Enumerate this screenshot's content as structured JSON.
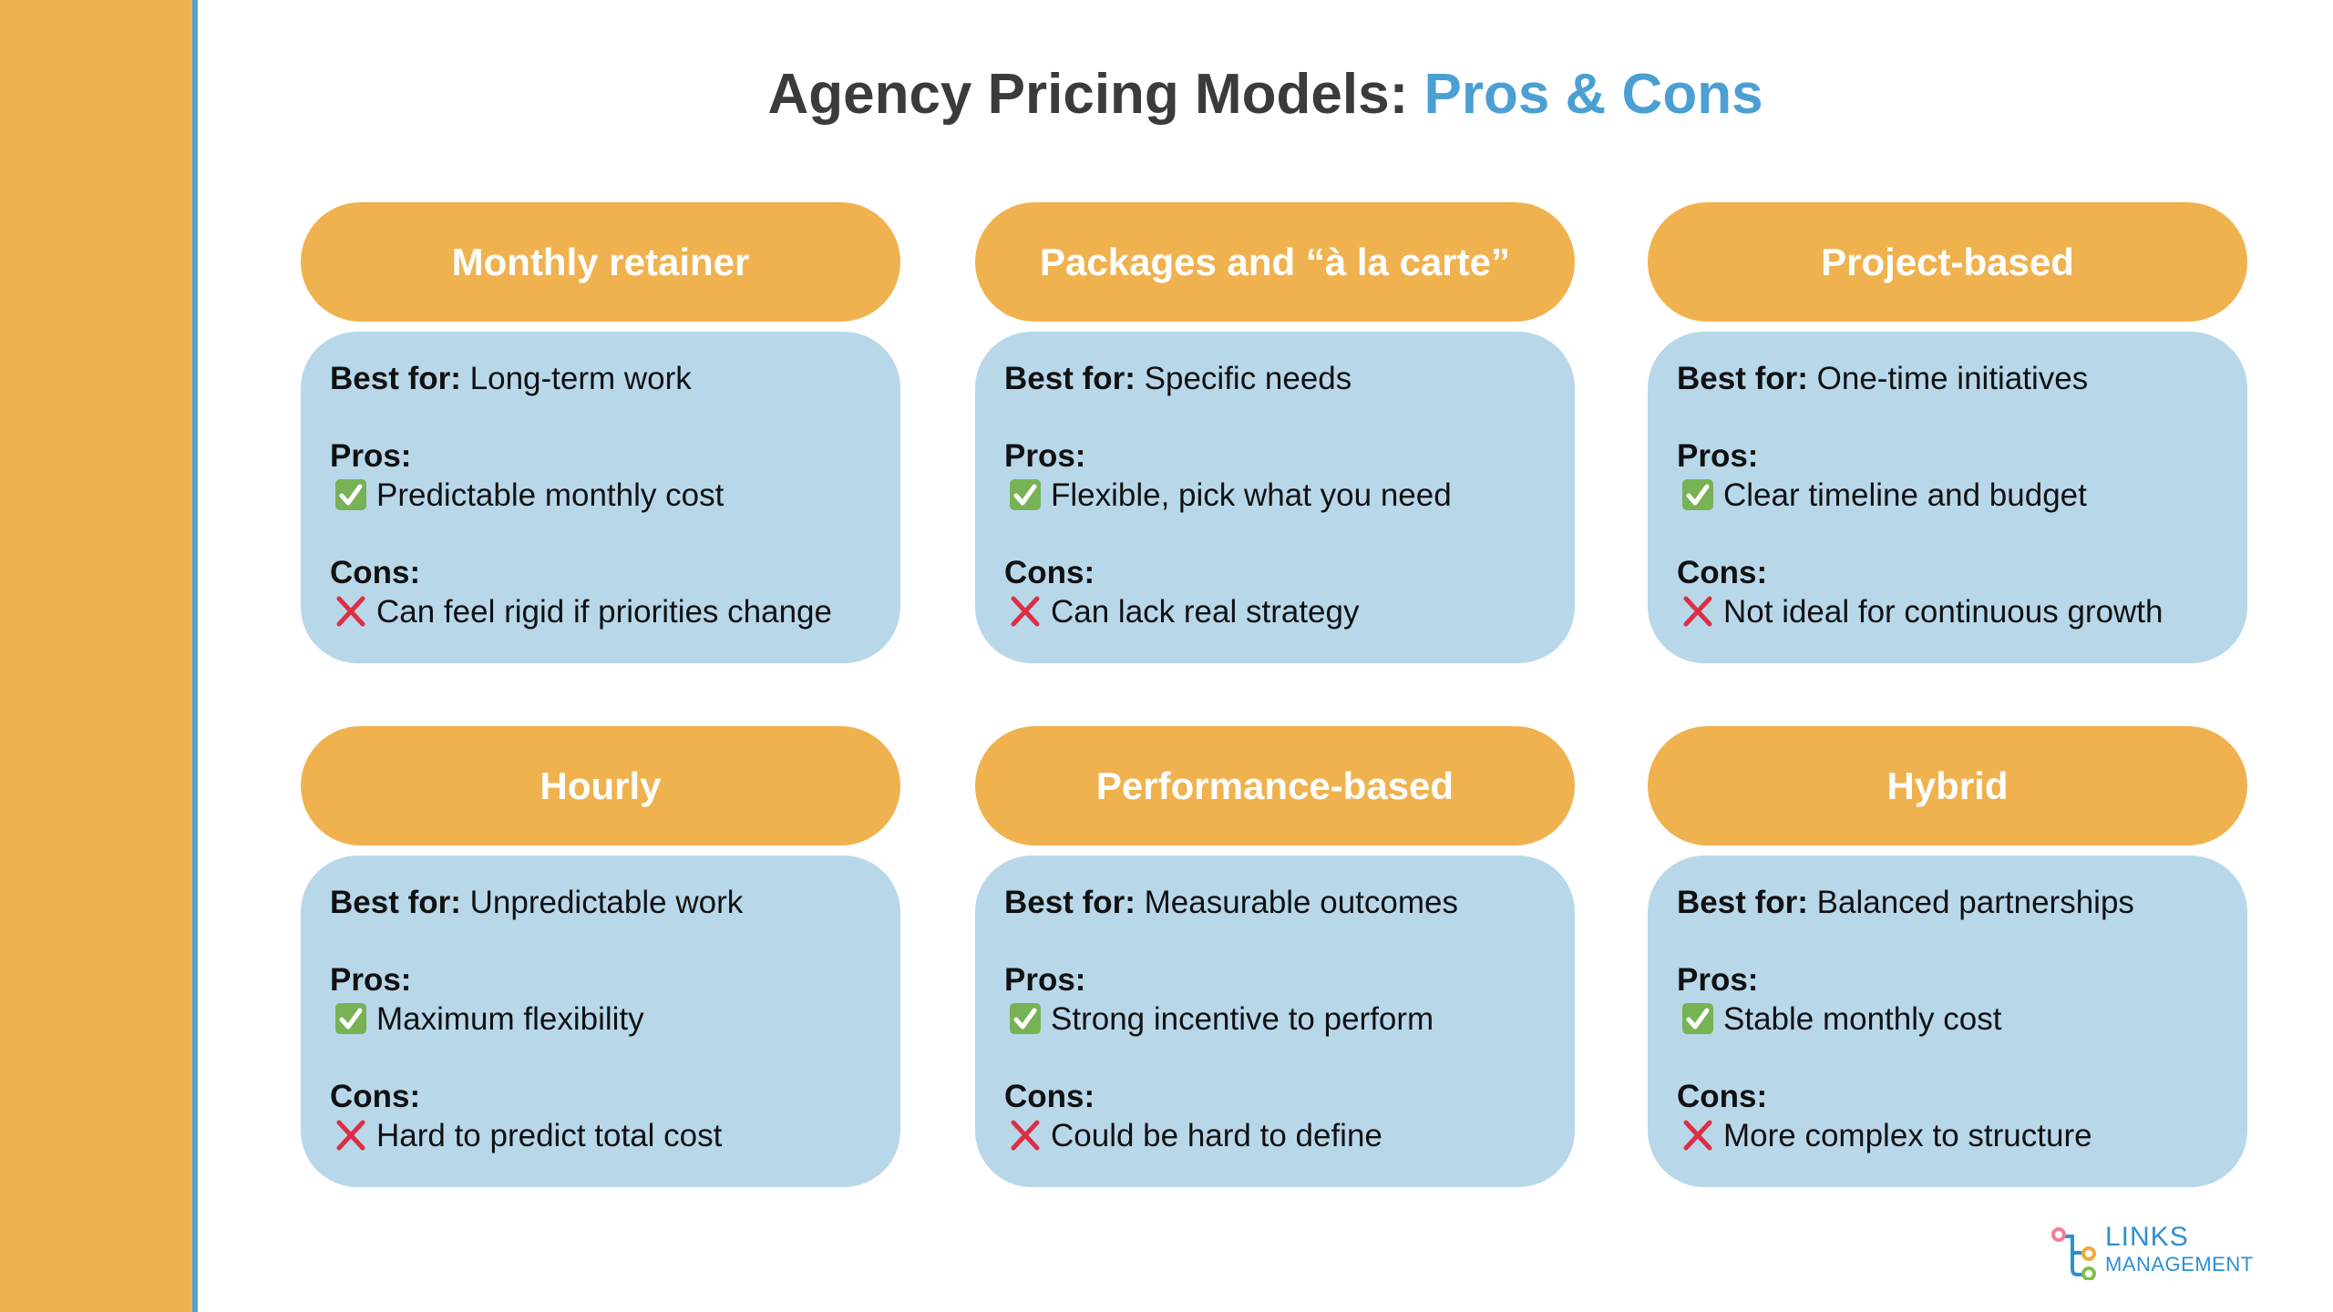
{
  "title": {
    "main": "Agency Pricing Models:",
    "accent": "Pros & Cons"
  },
  "labels": {
    "best_for": "Best for:",
    "pros": "Pros:",
    "cons": "Cons:"
  },
  "colors": {
    "sidebar": "#efb24f",
    "accent": "#4b9fd3",
    "card_header": "#efb24f",
    "card_body": "#b8d8ea",
    "check": "#77b255",
    "cross": "#dd2e44"
  },
  "cards": [
    {
      "title": "Monthly retainer",
      "best_for": "Long-term work",
      "pro": "Predictable monthly cost",
      "con": "Can feel rigid if priorities change"
    },
    {
      "title": "Packages and “à la carte”",
      "best_for": "Specific needs",
      "pro": "Flexible, pick what you need",
      "con": "Can lack real strategy"
    },
    {
      "title": "Project-based",
      "best_for": "One-time initiatives",
      "pro": "Clear timeline and budget",
      "con": "Not ideal for continuous growth"
    },
    {
      "title": "Hourly",
      "best_for": "Unpredictable work",
      "pro": "Maximum flexibility",
      "con": "Hard to predict total cost"
    },
    {
      "title": "Performance-based",
      "best_for": "Measurable outcomes",
      "pro": "Strong incentive to perform",
      "con": "Could be hard to define"
    },
    {
      "title": "Hybrid",
      "best_for": "Balanced partnerships",
      "pro": "Stable monthly cost",
      "con": "More complex to structure"
    }
  ],
  "logo": {
    "line1": "LINKS",
    "line2": "MANAGEMENT"
  }
}
